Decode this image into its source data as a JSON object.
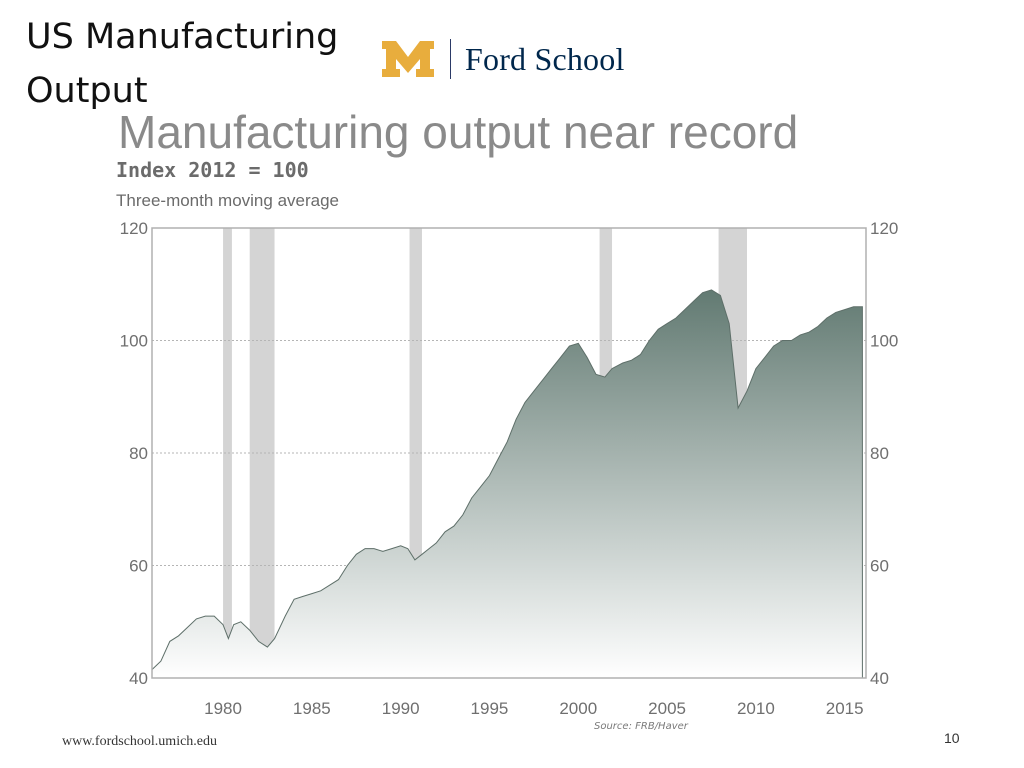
{
  "slide": {
    "title_line1": "US Manufacturing",
    "title_line2": "Output",
    "logo_text": "Ford School",
    "logo_icon": "block-m-icon",
    "footer_url": "www.fordschool.umich.edu",
    "page_number": "10"
  },
  "colors": {
    "area_top": "#627a72",
    "area_bottom": "#ffffff",
    "recession": "#d4d4d4",
    "grid": "#b5b5b5",
    "axis_text": "#6f6f6f",
    "title_text": "#8a8a8a",
    "logo_gold": "#e8ad3d",
    "logo_navy": "#00274c"
  },
  "chart_data": {
    "type": "area",
    "title": "Manufacturing output near record",
    "subtitle_bold": "Index 2012 = 100",
    "subtitle": "Three-month moving average",
    "source": "Source: FRB/Haver",
    "xlim": [
      1976,
      2016.2
    ],
    "ylim": [
      40,
      120
    ],
    "x_ticks": [
      1980,
      1985,
      1990,
      1995,
      2000,
      2005,
      2010,
      2015
    ],
    "y_ticks": [
      40,
      60,
      80,
      100,
      120
    ],
    "grid": "horizontal",
    "recessions": [
      [
        1980.0,
        1980.5
      ],
      [
        1981.5,
        1982.9
      ],
      [
        1990.5,
        1991.2
      ],
      [
        2001.2,
        2001.9
      ],
      [
        2007.9,
        2009.5
      ]
    ],
    "series": [
      {
        "x": [
          1976.0,
          1976.5,
          1977.0,
          1977.5,
          1978.0,
          1978.5,
          1979.0,
          1979.5,
          1980.0,
          1980.3,
          1980.6,
          1981.0,
          1981.5,
          1982.0,
          1982.5,
          1982.9,
          1983.5,
          1984.0,
          1984.5,
          1985.0,
          1985.5,
          1986.0,
          1986.5,
          1987.0,
          1987.5,
          1988.0,
          1988.5,
          1989.0,
          1989.5,
          1990.0,
          1990.4,
          1990.8,
          1991.2,
          1991.6,
          1992.0,
          1992.5,
          1993.0,
          1993.5,
          1994.0,
          1994.5,
          1995.0,
          1995.5,
          1996.0,
          1996.5,
          1997.0,
          1997.5,
          1998.0,
          1998.5,
          1999.0,
          1999.5,
          2000.0,
          2000.5,
          2001.0,
          2001.5,
          2001.9,
          2002.5,
          2003.0,
          2003.5,
          2004.0,
          2004.5,
          2005.0,
          2005.5,
          2006.0,
          2006.5,
          2007.0,
          2007.5,
          2008.0,
          2008.5,
          2009.0,
          2009.5,
          2010.0,
          2010.5,
          2011.0,
          2011.5,
          2012.0,
          2012.5,
          2013.0,
          2013.5,
          2014.0,
          2014.5,
          2015.0,
          2015.5,
          2016.0
        ],
        "y": [
          41.5,
          43.0,
          46.5,
          47.5,
          49.0,
          50.5,
          51.0,
          51.0,
          49.5,
          47.0,
          49.5,
          50.0,
          48.5,
          46.5,
          45.5,
          47.0,
          51.0,
          54.0,
          54.5,
          55.0,
          55.5,
          56.5,
          57.5,
          60.0,
          62.0,
          63.0,
          63.0,
          62.5,
          63.0,
          63.5,
          63.0,
          61.0,
          62.0,
          63.0,
          64.0,
          66.0,
          67.0,
          69.0,
          72.0,
          74.0,
          76.0,
          79.0,
          82.0,
          86.0,
          89.0,
          91.0,
          93.0,
          95.0,
          97.0,
          99.0,
          99.5,
          97.0,
          94.0,
          93.5,
          95.0,
          96.0,
          96.5,
          97.5,
          100.0,
          102.0,
          103.0,
          104.0,
          105.5,
          107.0,
          108.5,
          109.0,
          108.0,
          103.0,
          88.0,
          91.0,
          95.0,
          97.0,
          99.0,
          100.0,
          100.0,
          101.0,
          101.5,
          102.5,
          104.0,
          105.0,
          105.5,
          106.0,
          106.0
        ]
      }
    ]
  }
}
